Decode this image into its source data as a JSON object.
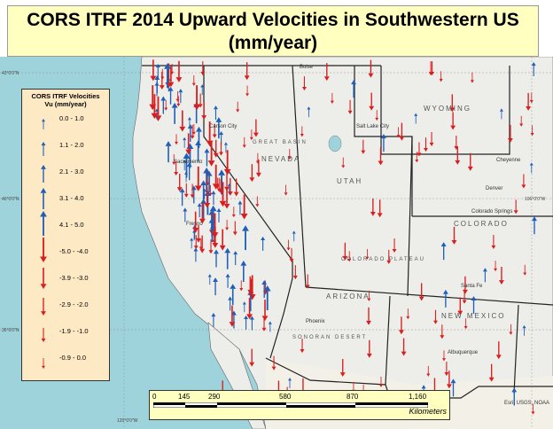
{
  "title": {
    "line1": "CORS ITRF 2014 Upward Velocities in Southwestern US",
    "line2": "(mm/year)"
  },
  "legend": {
    "title_line1": "CORS ITRF Velocities",
    "title_line2": "Vu (mm/year)",
    "classes": [
      {
        "label": "0.0 - 1.0",
        "color": "#1f5fb8",
        "direction": "up",
        "size": 1
      },
      {
        "label": "1.1 - 2.0",
        "color": "#1f5fb8",
        "direction": "up",
        "size": 2
      },
      {
        "label": "2.1 - 3.0",
        "color": "#1f5fb8",
        "direction": "up",
        "size": 3
      },
      {
        "label": "3.1 - 4.0",
        "color": "#1f5fb8",
        "direction": "up",
        "size": 4
      },
      {
        "label": "4.1 - 5.0",
        "color": "#1f5fb8",
        "direction": "up",
        "size": 5
      },
      {
        "label": "-5.0 - -4.0",
        "color": "#d91e1e",
        "direction": "down",
        "size": 5
      },
      {
        "label": "-3.9 - -3.0",
        "color": "#d91e1e",
        "direction": "down",
        "size": 4
      },
      {
        "label": "-2.9 - -2.0",
        "color": "#d91e1e",
        "direction": "down",
        "size": 3
      },
      {
        "label": "-1.9 - -1.0",
        "color": "#d91e1e",
        "direction": "down",
        "size": 2
      },
      {
        "label": "-0.9 - 0.0",
        "color": "#d91e1e",
        "direction": "down",
        "size": 1
      }
    ]
  },
  "scalebar": {
    "ticks": [
      "0",
      "145",
      "290",
      "580",
      "870",
      "1,160"
    ],
    "unit": "Kilometers"
  },
  "credit": "Esri, USGS, NOAA",
  "places": [
    {
      "name": "Sacramento"
    },
    {
      "name": "Carson City"
    },
    {
      "name": "Salt Lake City"
    },
    {
      "name": "Cheyenne"
    },
    {
      "name": "Denver"
    },
    {
      "name": "Colorado Springs"
    },
    {
      "name": "Santa Fe"
    },
    {
      "name": "Phoenix"
    },
    {
      "name": "Albuquerque"
    },
    {
      "name": "Fresno"
    },
    {
      "name": "Boise"
    }
  ],
  "state_labels": [
    "WYOMING",
    "NEVADA",
    "UTAH",
    "COLORADO",
    "ARIZONA",
    "NEW MEXICO",
    "GREAT BASIN",
    "SONORAN DESERT",
    "COLORADO PLATEAU"
  ],
  "coords": [
    "43°0'0\"N",
    "40°0'0\"N",
    "35°0'0\"N",
    "120°0'0\"W",
    "106°0'0\"W"
  ],
  "colors": {
    "ocean": "#9fd3dc",
    "land": "#ededea",
    "up_arrow": "#1f5fb8",
    "down_arrow": "#d91e1e",
    "title_bg": "#ffffc0",
    "legend_bg": "#fde9c4"
  }
}
